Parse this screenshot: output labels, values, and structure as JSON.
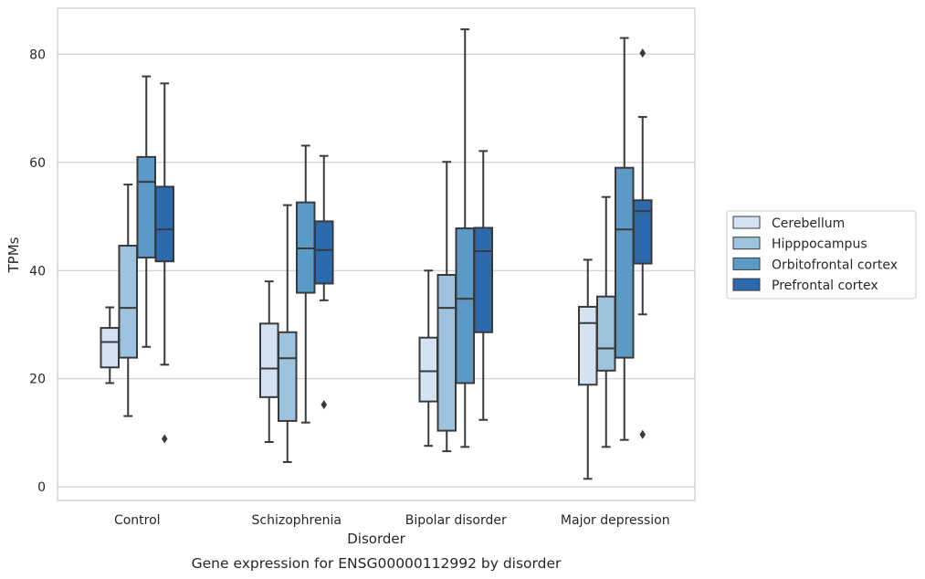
{
  "chart_data": {
    "type": "box",
    "caption": "Gene expression for ENSG00000112992 by disorder",
    "xlabel": "Disorder",
    "ylabel": "TPMs",
    "ylim": [
      -2.5,
      88.5
    ],
    "yticks": [
      0,
      20,
      40,
      60,
      80
    ],
    "grid": "horizontal",
    "legend_position": "right",
    "categories": [
      "Control",
      "Schizophrenia",
      "Bipolar disorder",
      "Major depression"
    ],
    "series": [
      {
        "name": "Cerebellum",
        "color": "#d4e3f2",
        "boxes": [
          {
            "whisker_low": 19.2,
            "q1": 22.1,
            "median": 26.8,
            "q3": 29.4,
            "whisker_high": 33.2,
            "outliers": []
          },
          {
            "whisker_low": 8.3,
            "q1": 16.6,
            "median": 21.9,
            "q3": 30.2,
            "whisker_high": 38.0,
            "outliers": []
          },
          {
            "whisker_low": 7.6,
            "q1": 15.8,
            "median": 21.4,
            "q3": 27.6,
            "whisker_high": 40.0,
            "outliers": []
          },
          {
            "whisker_low": 1.5,
            "q1": 18.9,
            "median": 30.3,
            "q3": 33.3,
            "whisker_high": 42.0,
            "outliers": []
          }
        ]
      },
      {
        "name": "Hipppocampus",
        "color": "#9dc3de",
        "boxes": [
          {
            "whisker_low": 13.1,
            "q1": 23.9,
            "median": 33.1,
            "q3": 44.6,
            "whisker_high": 55.9,
            "outliers": []
          },
          {
            "whisker_low": 4.6,
            "q1": 12.2,
            "median": 23.8,
            "q3": 28.6,
            "whisker_high": 52.1,
            "outliers": []
          },
          {
            "whisker_low": 6.6,
            "q1": 10.4,
            "median": 33.1,
            "q3": 39.2,
            "whisker_high": 60.1,
            "outliers": []
          },
          {
            "whisker_low": 7.4,
            "q1": 21.5,
            "median": 25.6,
            "q3": 35.2,
            "whisker_high": 53.6,
            "outliers": []
          }
        ]
      },
      {
        "name": "Orbitofrontal cortex",
        "color": "#5b9ac6",
        "boxes": [
          {
            "whisker_low": 25.9,
            "q1": 42.4,
            "median": 56.4,
            "q3": 61.0,
            "whisker_high": 75.9,
            "outliers": []
          },
          {
            "whisker_low": 11.9,
            "q1": 35.9,
            "median": 44.1,
            "q3": 52.6,
            "whisker_high": 63.1,
            "outliers": []
          },
          {
            "whisker_low": 7.4,
            "q1": 19.2,
            "median": 34.8,
            "q3": 47.8,
            "whisker_high": 84.6,
            "outliers": []
          },
          {
            "whisker_low": 8.7,
            "q1": 23.9,
            "median": 47.6,
            "q3": 59.0,
            "whisker_high": 83.0,
            "outliers": []
          }
        ]
      },
      {
        "name": "Prefrontal cortex",
        "color": "#2d6aad",
        "boxes": [
          {
            "whisker_low": 22.6,
            "q1": 41.7,
            "median": 47.6,
            "q3": 55.5,
            "whisker_high": 74.6,
            "outliers": [
              8.9
            ]
          },
          {
            "whisker_low": 34.5,
            "q1": 37.6,
            "median": 43.8,
            "q3": 49.1,
            "whisker_high": 61.2,
            "outliers": [
              15.2
            ]
          },
          {
            "whisker_low": 12.4,
            "q1": 28.6,
            "median": 43.6,
            "q3": 47.9,
            "whisker_high": 62.1,
            "outliers": []
          },
          {
            "whisker_low": 31.9,
            "q1": 41.3,
            "median": 51.0,
            "q3": 53.0,
            "whisker_high": 68.4,
            "outliers": [
              80.2,
              9.7
            ]
          }
        ]
      }
    ]
  }
}
